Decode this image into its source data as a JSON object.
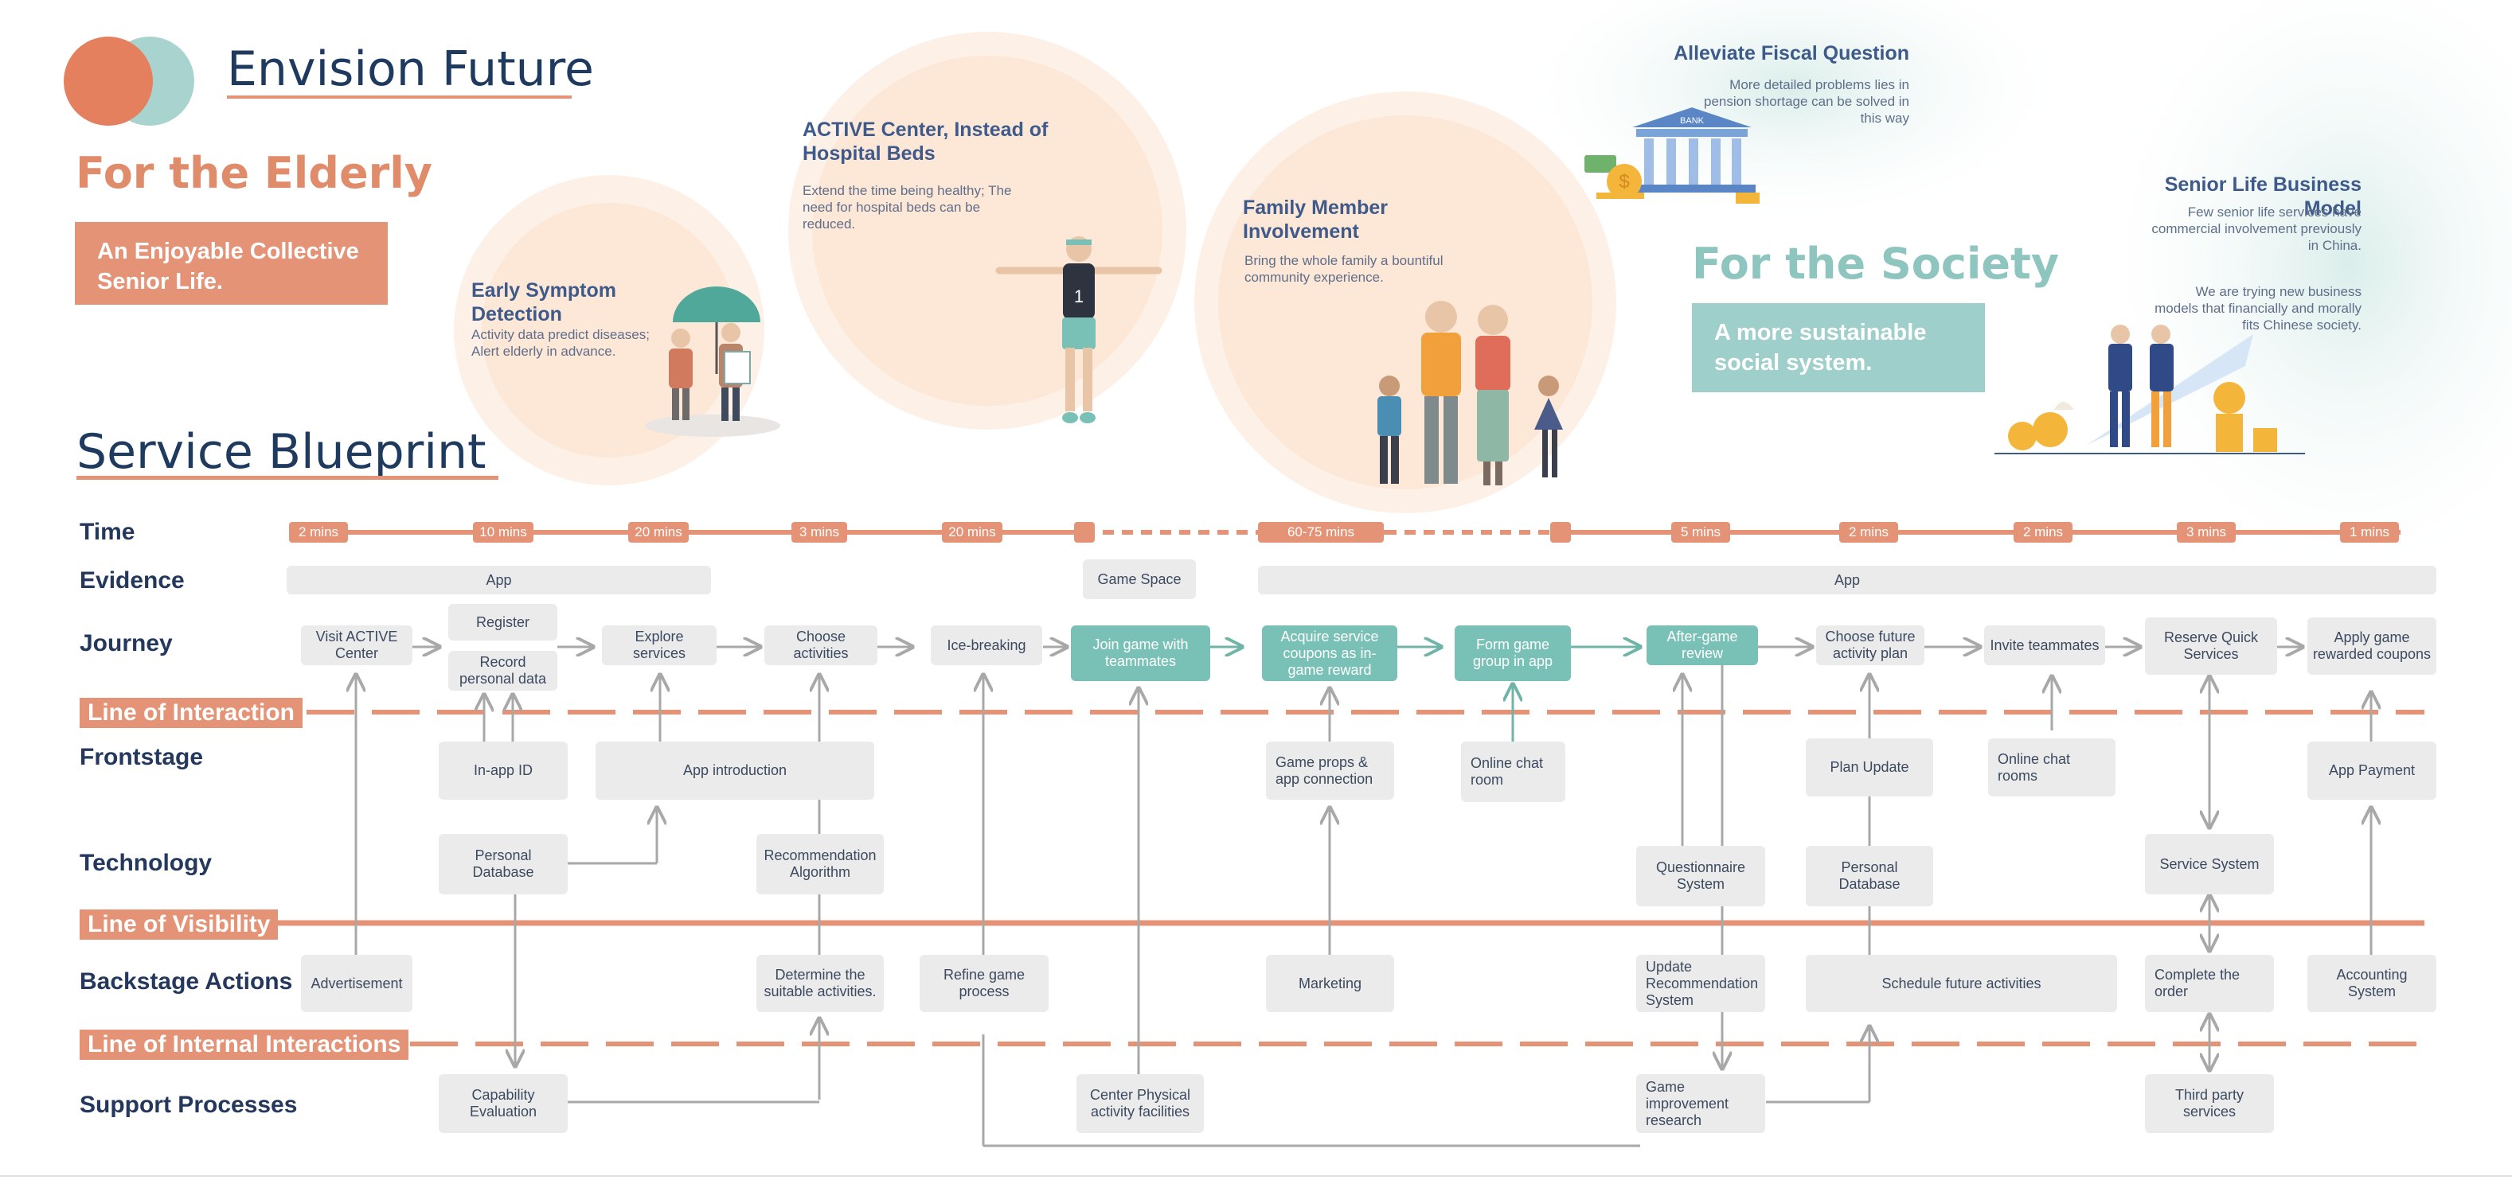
{
  "header": {
    "title": "Envision Future",
    "for_elderly": "For the Elderly",
    "elderly_box": "An Enjoyable Collective Senior Life.",
    "for_society": "For the Society",
    "society_box": "A more sustainable social system.",
    "blueprint_title": "Service Blueprint"
  },
  "concepts": {
    "early": {
      "title": "Early Symptom Detection",
      "text": "Activity data predict diseases; Alert elderly in advance."
    },
    "active": {
      "title": "ACTIVE Center, Instead of Hospital Beds",
      "text": "Extend the time being healthy; The need for hospital beds can be reduced."
    },
    "family": {
      "title": "Family Member Involvement",
      "text": "Bring the whole family a bountiful community experience."
    },
    "fiscal": {
      "title": "Alleviate Fiscal Question",
      "text": "More detailed problems lies in pension shortage can be solved in this way"
    },
    "business": {
      "title": "Senior Life Business Model",
      "text1": "Few senior life services have commercial involvement previously in China.",
      "text2": "We are trying new business models that financially and morally fits Chinese society."
    },
    "jersey_number": "1",
    "bank_label": "BANK"
  },
  "rows": {
    "time": "Time",
    "evidence": "Evidence",
    "journey": "Journey",
    "interaction": "Line of Interaction",
    "frontstage": "Frontstage",
    "technology": "Technology",
    "visibility": "Line of Visibility",
    "backstage": "Backstage Actions",
    "internal": "Line of Internal Interactions",
    "support": "Support Processes"
  },
  "time": [
    "2 mins",
    "10 mins",
    "20 mins",
    "3 mins",
    "20 mins",
    "60-75 mins",
    "5 mins",
    "2 mins",
    "2 mins",
    "3 mins",
    "1 mins"
  ],
  "evidence": [
    "App",
    "Game Space",
    "App"
  ],
  "journey": [
    "Visit ACTIVE Center",
    "Register",
    "Record personal data",
    "Explore services",
    "Choose activities",
    "Ice-breaking",
    "Join game with teammates",
    "Acquire service coupons as in-game reward",
    "Form game group in app",
    "After-game review",
    "Choose future activity plan",
    "Invite teammates",
    "Reserve Quick Services",
    "Apply game rewarded coupons"
  ],
  "frontstage": [
    "In-app ID",
    "App introduction",
    "Game props & app connection",
    "Online chat room",
    "Plan Update",
    "Online chat rooms",
    "App Payment"
  ],
  "technology": [
    "Personal Database",
    "Recommendation Algorithm",
    "Questionnaire System",
    "Personal Database",
    "Service System"
  ],
  "backstage": [
    "Advertisement",
    "Determine the suitable activities.",
    "Refine game process",
    "Marketing",
    "Update Recommendation System",
    "Schedule future activities",
    "Complete the order",
    "Accounting System"
  ],
  "support": [
    "Capability Evaluation",
    "Center Physical activity facilities",
    "Game improvement research",
    "Third party services"
  ],
  "colors": {
    "accent_orange": "#e59377",
    "accent_teal": "#79c1b6",
    "navy": "#24385e",
    "box_gray": "#ebebeb"
  }
}
